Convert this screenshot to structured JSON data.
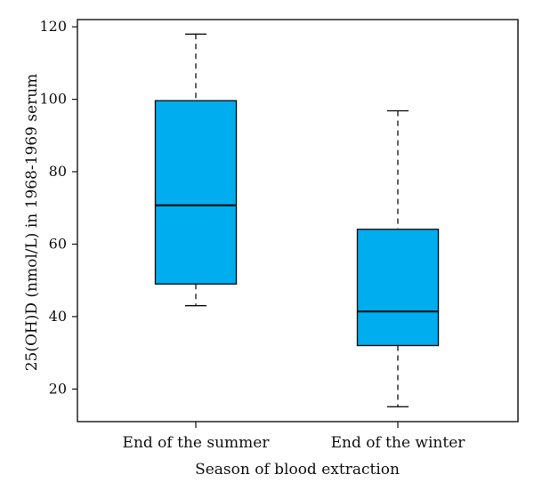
{
  "chart_data": {
    "type": "boxplot",
    "title": "",
    "xlabel": "Season of blood extraction",
    "ylabel": "25(OH)D (nmol/L) in 1968-1969 serum",
    "categories": [
      "End of the summer",
      "End of the winter"
    ],
    "boxes": [
      {
        "category": "End of the summer",
        "min": 43,
        "q1": 49,
        "median": 70.7,
        "q3": 99.6,
        "max": 118
      },
      {
        "category": "End of the winter",
        "min": 15.1,
        "q1": 32,
        "median": 41.4,
        "q3": 64.1,
        "max": 96.8
      }
    ],
    "ylim": [
      11,
      122
    ],
    "y_ticks": [
      20,
      40,
      60,
      80,
      100,
      120
    ],
    "grid": false,
    "legend": "none",
    "colors": {
      "box_fill": "#00ADEF",
      "stroke": "#111111",
      "background": "#FFFFFF"
    }
  }
}
